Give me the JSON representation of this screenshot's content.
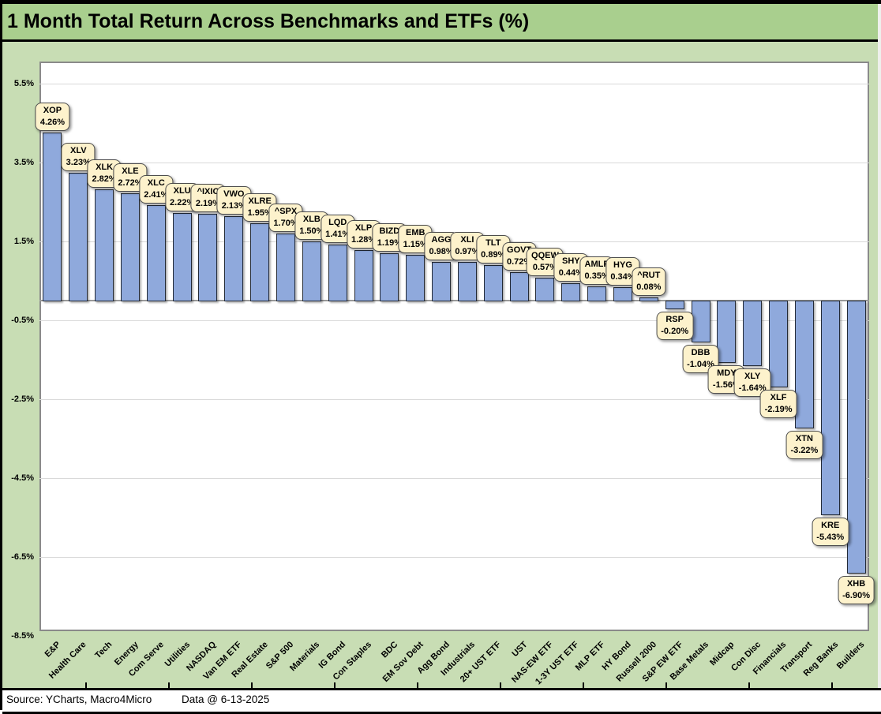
{
  "title": "1 Month Total Return Across Benchmarks and ETFs (%)",
  "footer": {
    "source": "Source: YCharts, Macro4Micro",
    "data_date": "Data @ 6-13-2025"
  },
  "colors": {
    "frame_border": "#000000",
    "title_bg": "#a9cf8e",
    "body_bg": "#c8ddb4",
    "plot_bg": "#ffffff",
    "plot_border": "#8a8a8a",
    "gridline": "#d9d9d9",
    "zero_line": "#9a9a9a",
    "bar_fill": "#8fa9dc",
    "bar_border": "#232a36",
    "label_bg": "#fdf2cc",
    "label_border": "#4d4d4d",
    "footer_bg": "#ffffff",
    "text": "#000000"
  },
  "chart_data": {
    "type": "bar",
    "title": "1 Month Total Return Across Benchmarks and ETFs (%)",
    "xlabel": "",
    "ylabel": "",
    "grid": true,
    "legend": "none",
    "ylim": [
      -8.5,
      6.0
    ],
    "y_tick_values": [
      5.5,
      3.5,
      1.5,
      -0.5,
      -2.5,
      -4.5,
      -6.5,
      -8.5
    ],
    "y_tick_labels": [
      "5.5%",
      "3.5%",
      "1.5%",
      "-0.5%",
      "-2.5%",
      "-4.5%",
      "-6.5%",
      "-8.5%"
    ],
    "categories": [
      "E&P",
      "Health Care",
      "Tech",
      "Energy",
      "Com Serve",
      "Utilities",
      "NASDAQ",
      "Van EM ETF",
      "Real Estate",
      "S&P 500",
      "Materials",
      "IG Bond",
      "Con Staples",
      "BDC",
      "EM Sov Debt",
      "Agg Bond",
      "Industrials",
      "20+ UST ETF",
      "UST",
      "NAS-EW ETF",
      "1-3Y UST ETF",
      "MLP ETF",
      "HY Bond",
      "Russell 2000",
      "S&P EW ETF",
      "Base Metals",
      "Midcap",
      "Con Disc",
      "Financials",
      "Transport",
      "Reg Banks",
      "Builders"
    ],
    "tickers": [
      "XOP",
      "XLV",
      "XLK",
      "XLE",
      "XLC",
      "XLU",
      "^IXIC",
      "VWO",
      "XLRE",
      "^SPX",
      "XLB",
      "LQD",
      "XLP",
      "BIZD",
      "EMB",
      "AGG",
      "XLI",
      "TLT",
      "GOVT",
      "QQEW",
      "SHY",
      "AMLP",
      "HYG",
      "^RUT",
      "RSP",
      "DBB",
      "MDY",
      "XLY",
      "XLF",
      "XTN",
      "KRE",
      "XHB"
    ],
    "values": [
      4.26,
      3.23,
      2.82,
      2.72,
      2.41,
      2.22,
      2.19,
      2.13,
      1.95,
      1.7,
      1.5,
      1.41,
      1.28,
      1.19,
      1.15,
      0.98,
      0.97,
      0.89,
      0.72,
      0.57,
      0.44,
      0.35,
      0.34,
      0.08,
      -0.2,
      -1.04,
      -1.56,
      -1.64,
      -2.19,
      -3.22,
      -5.43,
      -6.9
    ]
  }
}
